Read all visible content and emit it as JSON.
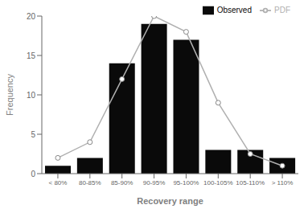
{
  "chart_data": {
    "type": "bar",
    "categories": [
      "< 80%",
      "80-85%",
      "85-90%",
      "90-95%",
      "95-100%",
      "100-105%",
      "105-110%",
      "> 110%"
    ],
    "series": [
      {
        "name": "Observed",
        "type": "bar",
        "color": "#0a0a0a",
        "values": [
          1,
          2,
          14,
          19,
          17,
          3,
          3,
          2
        ]
      },
      {
        "name": "PDF",
        "type": "line",
        "color": "#b0b0b0",
        "marker": "circle",
        "values": [
          2,
          4,
          12,
          20,
          18,
          9,
          2.5,
          1
        ]
      }
    ],
    "xlabel": "Recovery range",
    "ylabel": "Frequency",
    "ylim": [
      0,
      20
    ],
    "yticks": [
      0,
      5,
      10,
      15,
      20
    ],
    "grid": false,
    "legend": "upper right"
  }
}
